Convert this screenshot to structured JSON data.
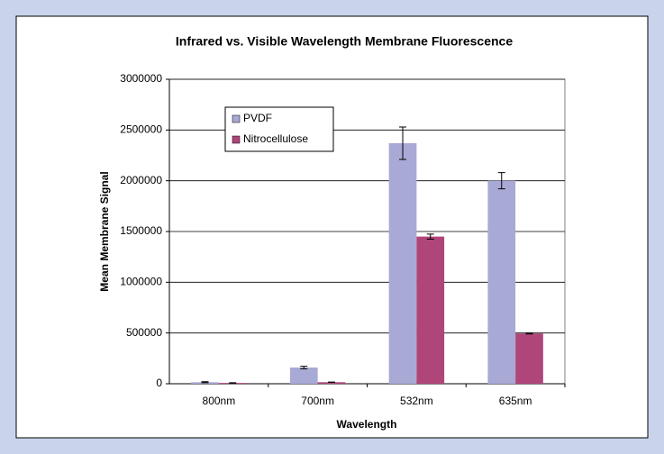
{
  "chart_data": {
    "type": "bar",
    "title": "Infrared vs. Visible Wavelength Membrane Fluorescence",
    "x_label": "Wavelength",
    "y_label": "Mean Membrane Signal",
    "categories": [
      "800nm",
      "700nm",
      "532nm",
      "635nm"
    ],
    "series": [
      {
        "name": "PVDF",
        "color": "#a9a9d6",
        "values": [
          15000,
          160000,
          2370000,
          2000000
        ],
        "errors": [
          5000,
          12000,
          160000,
          80000
        ]
      },
      {
        "name": "Nitrocellulose",
        "color": "#b0457a",
        "values": [
          8000,
          15000,
          1450000,
          495000
        ],
        "errors": [
          2000,
          2000,
          25000,
          5000
        ]
      }
    ],
    "ylim": [
      0,
      3000000
    ],
    "yticks": [
      0,
      500000,
      1000000,
      1500000,
      2000000,
      2500000,
      3000000
    ],
    "grid": true,
    "legend": "upper left"
  }
}
